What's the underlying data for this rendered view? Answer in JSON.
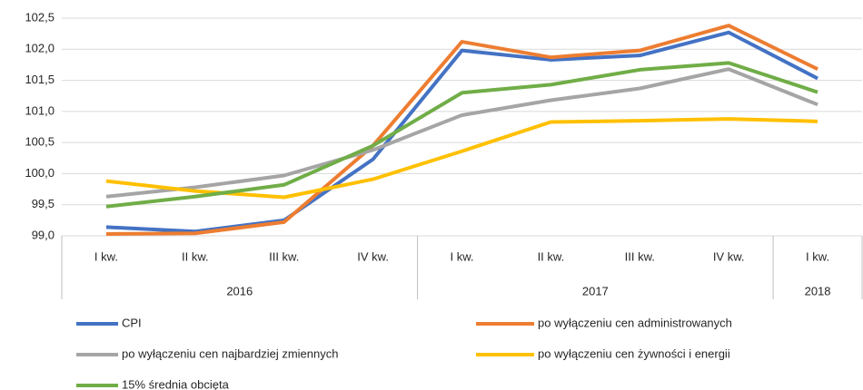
{
  "chart_data": {
    "type": "line",
    "groups": [
      {
        "name": "2016",
        "categories": [
          "I kw.",
          "II kw.",
          "III kw.",
          "IV kw."
        ]
      },
      {
        "name": "2017",
        "categories": [
          "I kw.",
          "II kw.",
          "III kw.",
          "IV kw."
        ]
      },
      {
        "name": "2018",
        "categories": [
          "I kw."
        ]
      }
    ],
    "series": [
      {
        "name": "CPI",
        "color": "#4472c4",
        "values": [
          99.14,
          99.07,
          99.25,
          100.23,
          101.98,
          101.83,
          101.9,
          102.27,
          101.53
        ]
      },
      {
        "name": "po wyłączeniu cen administrowanych",
        "color": "#ed7d31",
        "values": [
          99.03,
          99.04,
          99.22,
          100.45,
          102.12,
          101.87,
          101.98,
          102.38,
          101.68
        ]
      },
      {
        "name": "po wyłączeniu cen najbardziej zmiennych",
        "color": "#a5a5a5",
        "values": [
          99.63,
          99.78,
          99.97,
          100.38,
          100.94,
          101.18,
          101.37,
          101.68,
          101.11
        ]
      },
      {
        "name": "po wyłączeniu cen żywności i energii",
        "color": "#ffc000",
        "values": [
          99.88,
          99.72,
          99.62,
          99.91,
          100.36,
          100.83,
          100.85,
          100.88,
          100.84
        ]
      },
      {
        "name": "15% średnia obcięta",
        "color": "#70ad47",
        "values": [
          99.47,
          99.63,
          99.82,
          100.45,
          101.3,
          101.43,
          101.67,
          101.78,
          101.31
        ]
      }
    ],
    "ylim": [
      99.0,
      102.5
    ],
    "yticks": [
      {
        "value": 99.0,
        "label": "99,0"
      },
      {
        "value": 99.5,
        "label": "99,5"
      },
      {
        "value": 100.0,
        "label": "100,0"
      },
      {
        "value": 100.5,
        "label": "100,5"
      },
      {
        "value": 101.0,
        "label": "101,0"
      },
      {
        "value": 101.5,
        "label": "101,5"
      },
      {
        "value": 102.0,
        "label": "102,0"
      },
      {
        "value": 102.5,
        "label": "102,5"
      }
    ],
    "grid": true
  }
}
